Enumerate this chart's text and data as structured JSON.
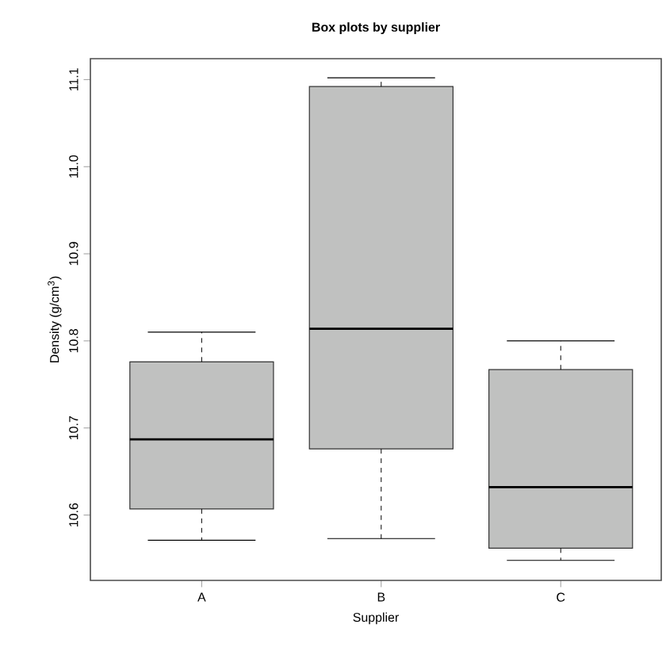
{
  "chart_data": {
    "type": "box",
    "title": "**Box plots by supplier**",
    "xlabel": "Supplier",
    "ylabel": "Density (g/cm$^{3}$)",
    "categories": [
      "A",
      "B",
      "C"
    ],
    "color": "#c0c1c0",
    "boxes": [
      {
        "low": 10.571,
        "q1": 10.607,
        "median": 10.687,
        "q3": 10.776,
        "high": 10.81
      },
      {
        "low": 10.573,
        "q1": 10.676,
        "median": 10.814,
        "q3": 11.092,
        "high": 11.102
      },
      {
        "low": 10.548,
        "q1": 10.562,
        "median": 10.632,
        "q3": 10.767,
        "high": 10.8
      }
    ],
    "ylim": [
      10.525,
      11.124
    ],
    "yticks": [
      10.6,
      10.7,
      10.8,
      10.9,
      {
        "value": 11,
        "label": "11.0"
      },
      11.1
    ],
    "grid": false
  }
}
